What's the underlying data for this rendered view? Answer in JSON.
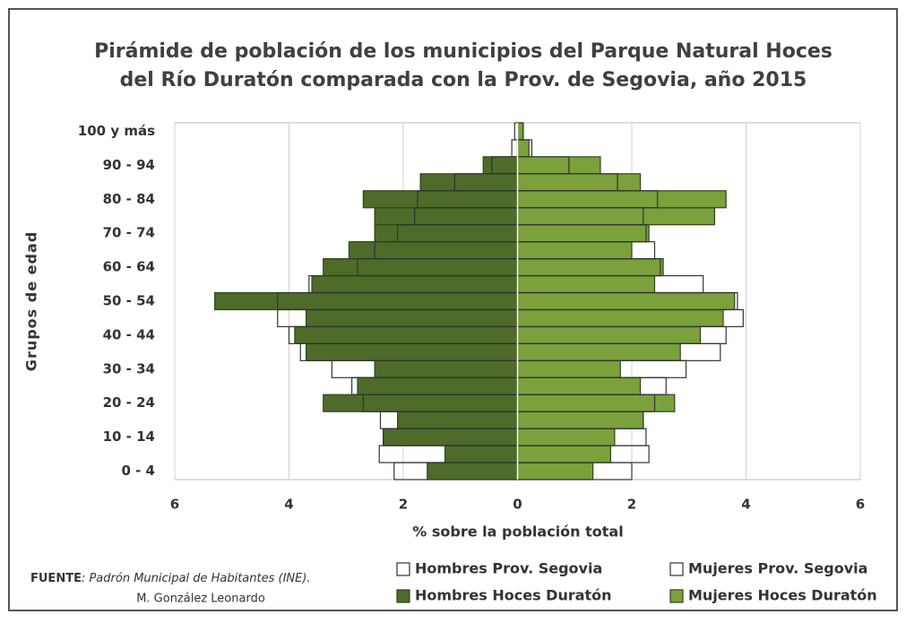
{
  "chart_data": {
    "type": "pyramid",
    "title": [
      "Pirámide de población de los municipios del Parque Natural Hoces",
      "del Río Duratón comparada con la Prov. de Segovia, año 2015"
    ],
    "x_label": "% sobre la población total",
    "y_label": "Grupos de edad",
    "categories": [
      "0 - 4",
      null,
      "10 - 14",
      null,
      "20 - 24",
      null,
      "30 - 34",
      null,
      "40 - 44",
      null,
      "50 - 54",
      null,
      "60 - 64",
      null,
      "70 - 74",
      null,
      "80 - 84",
      null,
      "90 - 94",
      null,
      "100 y más"
    ],
    "series": [
      {
        "name": "Hombres Hoces Duratón",
        "color": "#4e6b29",
        "style": "fill",
        "values": [
          -1.58,
          -1.27,
          -2.35,
          -2.1,
          -3.4,
          -2.8,
          -2.5,
          -3.7,
          -3.9,
          -3.7,
          -5.3,
          -3.6,
          -3.4,
          -2.95,
          -2.5,
          -2.5,
          -2.7,
          -1.7,
          -0.6,
          0,
          0
        ]
      },
      {
        "name": "Mujeres Hoces Duratón",
        "color": "#7aa13b",
        "style": "fill",
        "values": [
          1.32,
          1.63,
          1.7,
          2.2,
          2.75,
          2.15,
          1.8,
          2.85,
          3.2,
          3.6,
          3.8,
          2.4,
          2.55,
          2.0,
          2.3,
          3.45,
          3.65,
          2.15,
          1.45,
          0.2,
          0.1
        ]
      },
      {
        "name": "Hombres Prov. Segovia",
        "color": "#333333",
        "style": "outline",
        "values": [
          -2.16,
          -2.42,
          -2.35,
          -2.4,
          -2.7,
          -2.9,
          -3.25,
          -3.8,
          -4.0,
          -4.2,
          -4.2,
          -3.65,
          -2.8,
          -2.5,
          -2.1,
          -1.8,
          -1.75,
          -1.1,
          -0.45,
          -0.1,
          -0.05
        ]
      },
      {
        "name": "Mujeres Prov. Segovia",
        "color": "#333333",
        "style": "outline",
        "values": [
          2.0,
          2.3,
          2.25,
          2.2,
          2.4,
          2.6,
          2.95,
          3.55,
          3.65,
          3.95,
          3.85,
          3.25,
          2.5,
          2.4,
          2.25,
          2.2,
          2.45,
          1.75,
          0.9,
          0.25,
          0.1
        ]
      }
    ],
    "xlim": [
      -6,
      6
    ],
    "xticks": [
      {
        "value": -6,
        "label": "6"
      },
      {
        "value": -4,
        "label": "4"
      },
      {
        "value": -2,
        "label": "2"
      },
      0,
      2,
      4,
      6
    ],
    "grid": true,
    "source": {
      "label": "FUENTE",
      "text": ": Padrón Municipal de Habitantes (INE).",
      "author": "M. González Leonardo"
    }
  }
}
